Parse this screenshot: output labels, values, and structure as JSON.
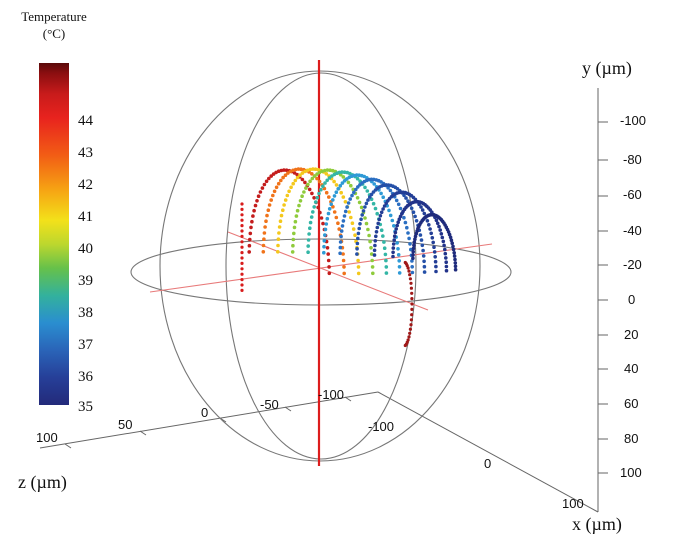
{
  "chart_data": {
    "type": "scatter",
    "dimensions": "3d",
    "colorbar": {
      "title_line1": "Temperature",
      "title_line2": "(°C)",
      "ticks": [
        "44",
        "43",
        "42",
        "41",
        "40",
        "39",
        "38",
        "37",
        "36",
        "35"
      ],
      "range": [
        35,
        45
      ],
      "colormap": "jet"
    },
    "axes": {
      "x": {
        "label": "x (µm)",
        "ticks": [
          "-100",
          "0",
          "100"
        ],
        "range": [
          -110,
          110
        ]
      },
      "y": {
        "label": "y (µm)",
        "ticks": [
          "-100",
          "-80",
          "-60",
          "-40",
          "-20",
          "0",
          "20",
          "40",
          "60",
          "80",
          "100"
        ],
        "range": [
          -110,
          110
        ]
      },
      "z": {
        "label": "z (µm)",
        "ticks": [
          "100",
          "50",
          "0",
          "-50",
          "-100"
        ],
        "range": [
          -110,
          110
        ]
      }
    },
    "sphere_radius": 100,
    "series": [
      {
        "x_um": -15,
        "color": "#c41c1c"
      },
      {
        "x_um": -5,
        "color": "#f0731a"
      },
      {
        "x_um": 5,
        "color": "#f4c81c"
      },
      {
        "x_um": 15,
        "color": "#8fcb3c"
      },
      {
        "x_um": 25,
        "color": "#33b6a6"
      },
      {
        "x_um": 35,
        "color": "#2e9ad6"
      },
      {
        "x_um": 45,
        "color": "#2b6fc2"
      },
      {
        "x_um": 55,
        "color": "#2550a8"
      },
      {
        "x_um": 65,
        "color": "#233e96"
      },
      {
        "x_um": 75,
        "color": "#22338a"
      },
      {
        "x_um": 85,
        "color": "#1f2b7c"
      }
    ]
  }
}
